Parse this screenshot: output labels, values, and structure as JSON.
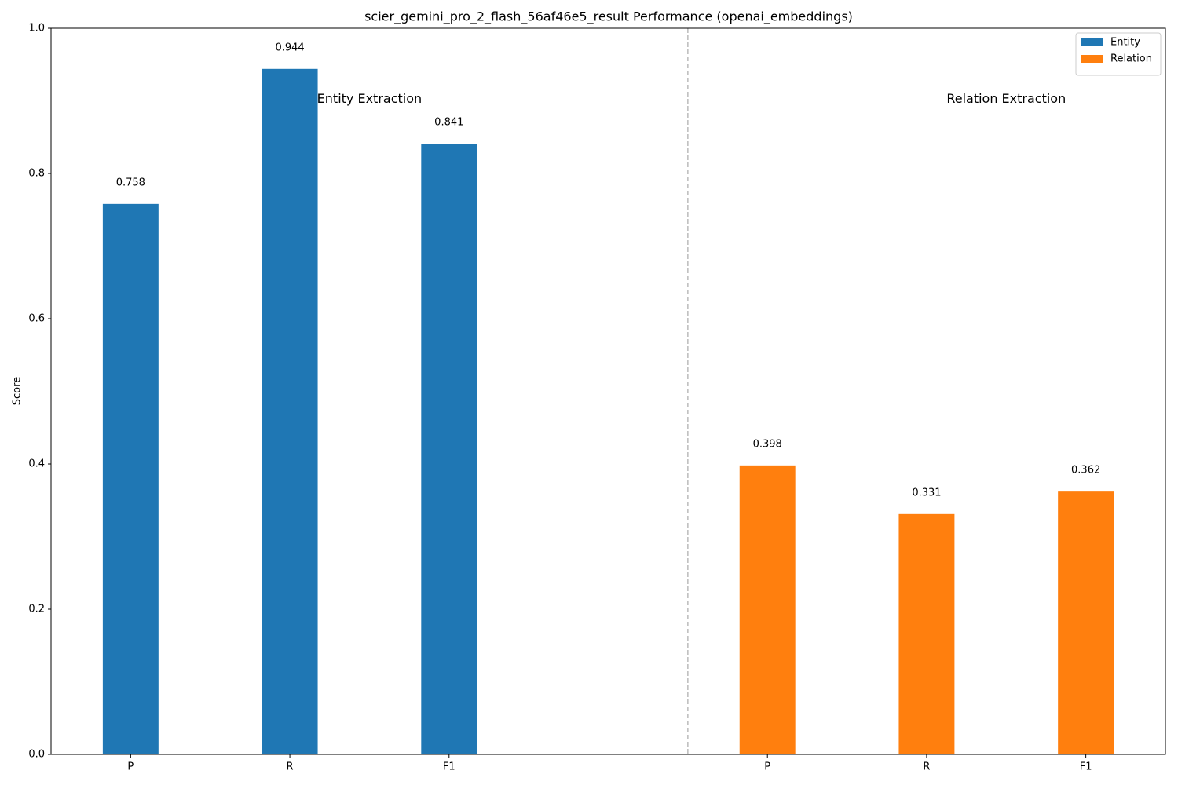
{
  "chart_data": {
    "type": "bar",
    "title": "scier_gemini_pro_2_flash_56af46e5_result Performance (openai_embeddings)",
    "ylabel": "Score",
    "xlim": [
      -0.5,
      6.5
    ],
    "xticks": [
      {
        "value": 0,
        "label": "P"
      },
      {
        "value": 1,
        "label": "R"
      },
      {
        "value": 2,
        "label": "F1"
      },
      {
        "value": 4,
        "label": "P"
      },
      {
        "value": 5,
        "label": "R"
      },
      {
        "value": 6,
        "label": "F1"
      }
    ],
    "ylim": [
      0,
      1
    ],
    "yticks": [
      {
        "value": 0,
        "label": "0.0"
      },
      {
        "value": 0.2,
        "label": "0.2"
      },
      {
        "value": 0.4,
        "label": "0.4"
      },
      {
        "value": 0.6,
        "label": "0.6"
      },
      {
        "value": 0.8,
        "label": "0.8"
      },
      {
        "value": 1,
        "label": "1.0"
      }
    ],
    "bar_width": 0.35,
    "separator_x": 3.5,
    "legend": "upper right",
    "series": [
      {
        "name": "Entity",
        "color": "#1f77b4",
        "x": [
          0,
          1,
          2
        ],
        "values": [
          0.758,
          0.944,
          0.841
        ]
      },
      {
        "name": "Relation",
        "color": "#ff7f0e",
        "x": [
          4,
          5,
          6
        ],
        "values": [
          0.398,
          0.331,
          0.362
        ]
      }
    ],
    "annotations": [
      {
        "text": "Entity Extraction",
        "x": 1.5,
        "y": 0.94
      },
      {
        "text": "Relation Extraction",
        "x": 5.5,
        "y": 0.94
      }
    ]
  }
}
